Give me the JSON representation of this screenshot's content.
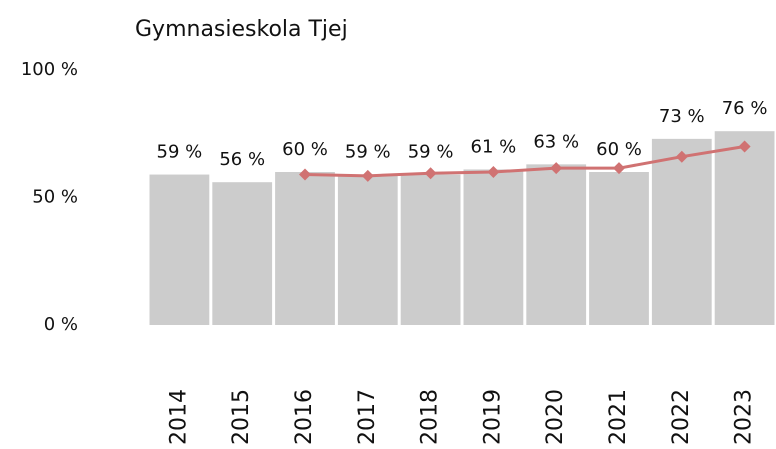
{
  "chart_data": {
    "type": "bar",
    "title": "Gymnasieskola Tjej",
    "categories": [
      "2014",
      "2015",
      "2016",
      "2017",
      "2018",
      "2019",
      "2020",
      "2021",
      "2022",
      "2023"
    ],
    "series": [
      {
        "type": "bar",
        "color": "#cccccc",
        "values": [
          59,
          56,
          60,
          59,
          59,
          61,
          63,
          60,
          73,
          76
        ],
        "value_labels": [
          "59 %",
          "56 %",
          "60 %",
          "59 %",
          "59 %",
          "61 %",
          "63 %",
          "60 %",
          "73 %",
          "76 %"
        ]
      },
      {
        "type": "line",
        "color": "#d07272",
        "values": [
          null,
          null,
          59,
          58.5,
          59.5,
          60,
          61.5,
          61.5,
          66,
          70
        ]
      }
    ],
    "ylim": [
      0,
      100
    ],
    "yticks": [
      {
        "value": 0,
        "label": "0 %"
      },
      {
        "value": 50,
        "label": "50 %"
      },
      {
        "value": 100,
        "label": "100 %"
      }
    ],
    "grid": false
  }
}
